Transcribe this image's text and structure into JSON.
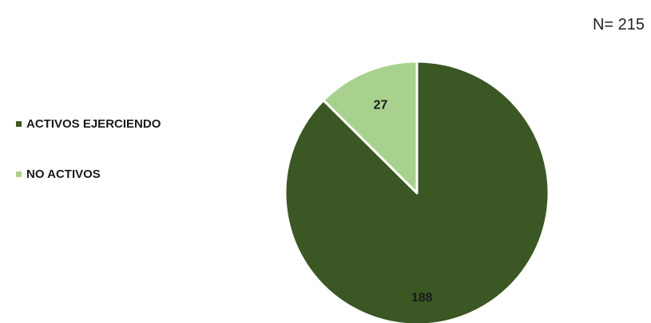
{
  "n_label": "N= 215",
  "chart_data": {
    "type": "pie",
    "categories": [
      "ACTIVOS EJERCIENDO",
      "NO ACTIVOS"
    ],
    "values": [
      188,
      27
    ],
    "data_labels": [
      "188",
      "27"
    ],
    "colors": [
      "#3b5723",
      "#a9d18e"
    ],
    "legend_position": "left",
    "start_angle_deg": 0,
    "direction": "clockwise"
  }
}
